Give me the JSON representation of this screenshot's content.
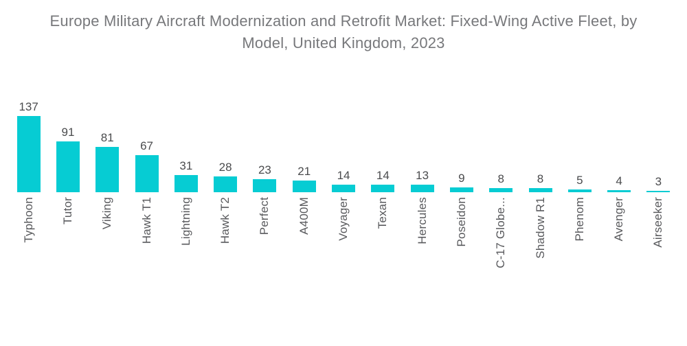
{
  "title_lines": [
    "Europe Military Aircraft Modernization and Retrofit Market: Fixed-Wing Active Fleet, by",
    "Model, United Kingdom, 2023"
  ],
  "colors": {
    "background": "#FFFFFF",
    "bar": "#06CCD3",
    "title_text": "#77787B",
    "value_label_text": "#4A4B4D",
    "axis_label_text": "#58595C"
  },
  "chart_data": {
    "type": "bar",
    "title": "Europe Military Aircraft Modernization and Retrofit Market: Fixed-Wing Active Fleet, by Model, United Kingdom, 2023",
    "categories": [
      "Typhoon",
      "Tutor",
      "Viking",
      "Hawk T1",
      "Lightning",
      "Hawk T2",
      "Perfect",
      "A400M",
      "Voyager",
      "Texan",
      "Hercules",
      "Poseidon",
      "C-17 Globe...",
      "Shadow R1",
      "Phenom",
      "Avenger",
      "Airseeker"
    ],
    "values": [
      137,
      91,
      81,
      67,
      31,
      28,
      23,
      21,
      14,
      14,
      13,
      9,
      8,
      8,
      5,
      4,
      3
    ],
    "xlabel": "",
    "ylabel": "",
    "ylim": [
      0,
      137
    ],
    "grid": false,
    "legend": false,
    "y_axis_shown": false,
    "value_labels_shown": true,
    "x_tick_rotation_deg": 90,
    "bar_color": "#06CCD3"
  }
}
